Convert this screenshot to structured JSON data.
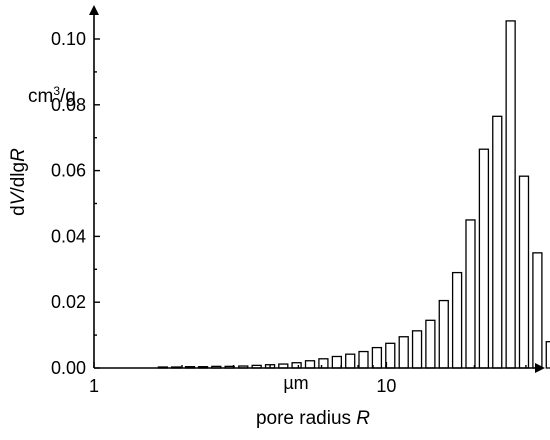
{
  "chart_data": {
    "type": "bar",
    "xlabel": "pore radius",
    "xlabel_italic": "R",
    "ylabel": "dV/dlgR",
    "yunit": "cm³/g",
    "x_scale": "log",
    "xlim": [
      1,
      50
    ],
    "ylim": [
      0,
      0.11
    ],
    "x_ticks": [
      {
        "value": 1,
        "label": "1"
      },
      {
        "value": 10,
        "label": "10"
      }
    ],
    "x_unit_label": "µm",
    "y_ticks": [
      {
        "value": 0.0,
        "label": "0.00"
      },
      {
        "value": 0.02,
        "label": "0.02"
      },
      {
        "value": 0.04,
        "label": "0.04"
      },
      {
        "value": 0.06,
        "label": "0.06"
      },
      {
        "value": 0.08,
        "label": "0.08"
      },
      {
        "value": 0.1,
        "label": "0.10"
      }
    ],
    "bars": [
      {
        "x": 1.72,
        "y": 0.0003
      },
      {
        "x": 1.91,
        "y": 0.0003
      },
      {
        "x": 2.13,
        "y": 0.0004
      },
      {
        "x": 2.36,
        "y": 0.0004
      },
      {
        "x": 2.62,
        "y": 0.0005
      },
      {
        "x": 2.91,
        "y": 0.0005
      },
      {
        "x": 3.24,
        "y": 0.0006
      },
      {
        "x": 3.6,
        "y": 0.0008
      },
      {
        "x": 4.0,
        "y": 0.001
      },
      {
        "x": 4.44,
        "y": 0.0012
      },
      {
        "x": 4.93,
        "y": 0.0016
      },
      {
        "x": 5.48,
        "y": 0.0022
      },
      {
        "x": 6.09,
        "y": 0.0028
      },
      {
        "x": 6.77,
        "y": 0.0035
      },
      {
        "x": 7.52,
        "y": 0.0042
      },
      {
        "x": 8.35,
        "y": 0.005
      },
      {
        "x": 9.28,
        "y": 0.0062
      },
      {
        "x": 10.31,
        "y": 0.0075
      },
      {
        "x": 11.46,
        "y": 0.0095
      },
      {
        "x": 12.73,
        "y": 0.0113
      },
      {
        "x": 14.14,
        "y": 0.0145
      },
      {
        "x": 15.71,
        "y": 0.0205
      },
      {
        "x": 17.45,
        "y": 0.029
      },
      {
        "x": 19.39,
        "y": 0.045
      },
      {
        "x": 21.55,
        "y": 0.0665
      },
      {
        "x": 23.94,
        "y": 0.0765
      },
      {
        "x": 26.6,
        "y": 0.1055
      },
      {
        "x": 29.55,
        "y": 0.0583
      },
      {
        "x": 32.84,
        "y": 0.035
      },
      {
        "x": 36.49,
        "y": 0.008
      }
    ]
  }
}
